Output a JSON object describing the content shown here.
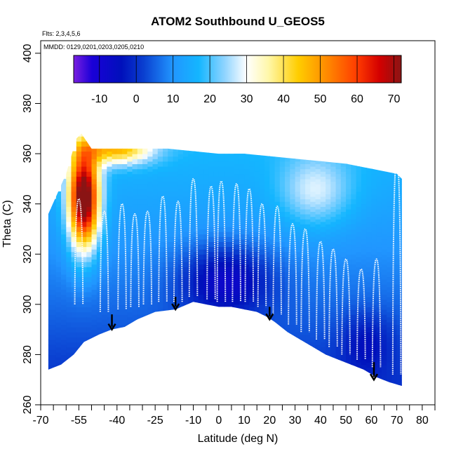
{
  "chart_data": {
    "type": "heatmap",
    "title": "ATOM2 Southbound U_GEOS5",
    "annotation_flights": "Flts: 2,3,4,5,6",
    "annotation_dates": "MMDD: 0129,0201,0203,0205,0210",
    "xlabel": "Latitude (deg N)",
    "ylabel": "Theta (C)",
    "xlim": [
      -70,
      85
    ],
    "ylim": [
      260,
      405
    ],
    "x_tick_labels": [
      "-70",
      "-55",
      "-40",
      "-25",
      "-10",
      "0",
      "10",
      "20",
      "30",
      "40",
      "50",
      "60",
      "70",
      "80"
    ],
    "x_tick_values": [
      -70,
      -55,
      -40,
      -25,
      -10,
      0,
      10,
      20,
      30,
      40,
      50,
      60,
      70,
      80
    ],
    "x_minor_ticks": [
      -65,
      -60,
      -50,
      -45,
      -35,
      -30,
      -20,
      -15,
      -5,
      5,
      15,
      25,
      35,
      45,
      55,
      65,
      75,
      85
    ],
    "y_tick_labels": [
      "260",
      "280",
      "300",
      "320",
      "340",
      "360",
      "380",
      "400"
    ],
    "y_tick_values": [
      260,
      280,
      300,
      320,
      340,
      360,
      380,
      400
    ],
    "colorbar": {
      "range": [
        -17,
        72
      ],
      "tick_labels": [
        "-10",
        "0",
        "10",
        "20",
        "30",
        "40",
        "50",
        "60",
        "70"
      ],
      "tick_values": [
        -10,
        0,
        10,
        20,
        30,
        40,
        50,
        60,
        70
      ],
      "stops": [
        {
          "v": -17,
          "c": "#7a1fe0"
        },
        {
          "v": -12,
          "c": "#1a00d8"
        },
        {
          "v": -4,
          "c": "#0010bb"
        },
        {
          "v": 2,
          "c": "#0a3fd0"
        },
        {
          "v": 10,
          "c": "#2196ff"
        },
        {
          "v": 17,
          "c": "#14b6ff"
        },
        {
          "v": 24,
          "c": "#8fd4ff"
        },
        {
          "v": 30,
          "c": "#ffffff"
        },
        {
          "v": 36,
          "c": "#fff7a8"
        },
        {
          "v": 44,
          "c": "#ffcd00"
        },
        {
          "v": 52,
          "c": "#ff8800"
        },
        {
          "v": 60,
          "c": "#ff3b00"
        },
        {
          "v": 66,
          "c": "#d40000"
        },
        {
          "v": 72,
          "c": "#8a1414"
        }
      ]
    },
    "ground": [
      [
        -67,
        274
      ],
      [
        -62,
        276
      ],
      [
        -57,
        280
      ],
      [
        -53,
        285
      ],
      [
        -47,
        288
      ],
      [
        -42,
        290
      ],
      [
        -37,
        291
      ],
      [
        -32,
        294
      ],
      [
        -25,
        297
      ],
      [
        -17,
        298
      ],
      [
        -10,
        301
      ],
      [
        -5,
        300
      ],
      [
        0,
        299
      ],
      [
        5,
        299
      ],
      [
        10,
        298
      ],
      [
        15,
        297
      ],
      [
        19,
        295
      ],
      [
        22,
        293
      ],
      [
        27,
        289
      ],
      [
        32,
        286
      ],
      [
        37,
        283
      ],
      [
        42,
        280
      ],
      [
        47,
        278
      ],
      [
        52,
        276
      ],
      [
        57,
        274
      ],
      [
        62,
        271
      ],
      [
        67,
        269
      ],
      [
        72,
        267.5
      ]
    ],
    "top": [
      [
        -67,
        336
      ],
      [
        -60,
        352
      ],
      [
        -56,
        366
      ],
      [
        -54,
        368
      ],
      [
        -50,
        362
      ],
      [
        -45,
        362
      ],
      [
        -40,
        362
      ],
      [
        -30,
        362
      ],
      [
        -20,
        362
      ],
      [
        -10,
        361
      ],
      [
        0,
        360
      ],
      [
        10,
        360
      ],
      [
        20,
        359
      ],
      [
        30,
        358
      ],
      [
        40,
        357
      ],
      [
        50,
        356
      ],
      [
        60,
        354
      ],
      [
        70,
        352
      ],
      [
        72,
        350
      ]
    ],
    "jet_core": {
      "lat": -53,
      "theta": 342,
      "peak_speed": 72
    },
    "arrows": [
      {
        "lat": -42,
        "theta_top": 296,
        "theta_tip": 290
      },
      {
        "lat": -17,
        "theta_top": 303,
        "theta_tip": 298
      },
      {
        "lat": 20,
        "theta_top": 299,
        "theta_tip": 294
      },
      {
        "lat": 61,
        "theta_top": 277,
        "theta_tip": 270
      }
    ],
    "profiles": [
      {
        "lat": -55,
        "bottom": 300,
        "top": 342
      },
      {
        "lat": -45,
        "bottom": 297,
        "top": 337
      },
      {
        "lat": -38,
        "bottom": 298,
        "top": 340
      },
      {
        "lat": -33,
        "bottom": 299,
        "top": 336
      },
      {
        "lat": -28,
        "bottom": 300,
        "top": 337
      },
      {
        "lat": -22,
        "bottom": 301,
        "top": 343
      },
      {
        "lat": -16,
        "bottom": 301,
        "top": 341
      },
      {
        "lat": -10,
        "bottom": 303,
        "top": 350
      },
      {
        "lat": -3,
        "bottom": 302,
        "top": 347
      },
      {
        "lat": 1,
        "bottom": 301,
        "top": 349
      },
      {
        "lat": 7,
        "bottom": 301,
        "top": 348
      },
      {
        "lat": 12,
        "bottom": 301,
        "top": 346
      },
      {
        "lat": 17,
        "bottom": 299,
        "top": 340
      },
      {
        "lat": 23,
        "bottom": 296,
        "top": 339
      },
      {
        "lat": 29,
        "bottom": 292,
        "top": 332
      },
      {
        "lat": 34,
        "bottom": 289,
        "top": 330
      },
      {
        "lat": 40,
        "bottom": 286,
        "top": 325
      },
      {
        "lat": 45,
        "bottom": 283,
        "top": 322
      },
      {
        "lat": 50,
        "bottom": 280,
        "top": 318
      },
      {
        "lat": 56,
        "bottom": 278,
        "top": 314
      },
      {
        "lat": 62,
        "bottom": 275,
        "top": 318
      },
      {
        "lat": 70,
        "bottom": 272,
        "top": 358
      }
    ]
  }
}
